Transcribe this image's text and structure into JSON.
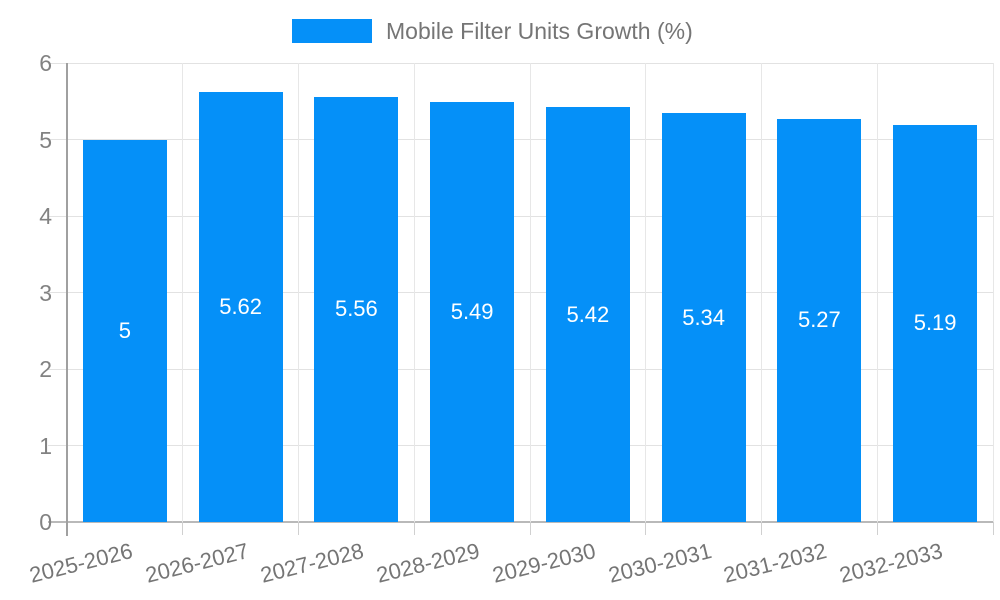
{
  "legend": {
    "label": "Mobile Filter Units Growth (%)"
  },
  "chart_data": {
    "type": "bar",
    "title": "Mobile Filter Units Growth (%)",
    "categories": [
      "2025-2026",
      "2026-2027",
      "2027-2028",
      "2028-2029",
      "2029-2030",
      "2030-2031",
      "2031-2032",
      "2032-2033"
    ],
    "values": [
      5,
      5.62,
      5.56,
      5.49,
      5.42,
      5.34,
      5.27,
      5.19
    ],
    "value_labels": [
      "5",
      "5.62",
      "5.56",
      "5.49",
      "5.42",
      "5.34",
      "5.27",
      "5.19"
    ],
    "xlabel": "",
    "ylabel": "",
    "ylim": [
      0,
      6
    ],
    "ytick_step": 1,
    "ytick_labels": [
      "0",
      "1",
      "2",
      "3",
      "4",
      "5",
      "6"
    ],
    "grid": true,
    "legend_position": "top",
    "bar_color": "#0590f8",
    "bar_label_color": "#ffffff",
    "axis_text_color": "#757575"
  }
}
